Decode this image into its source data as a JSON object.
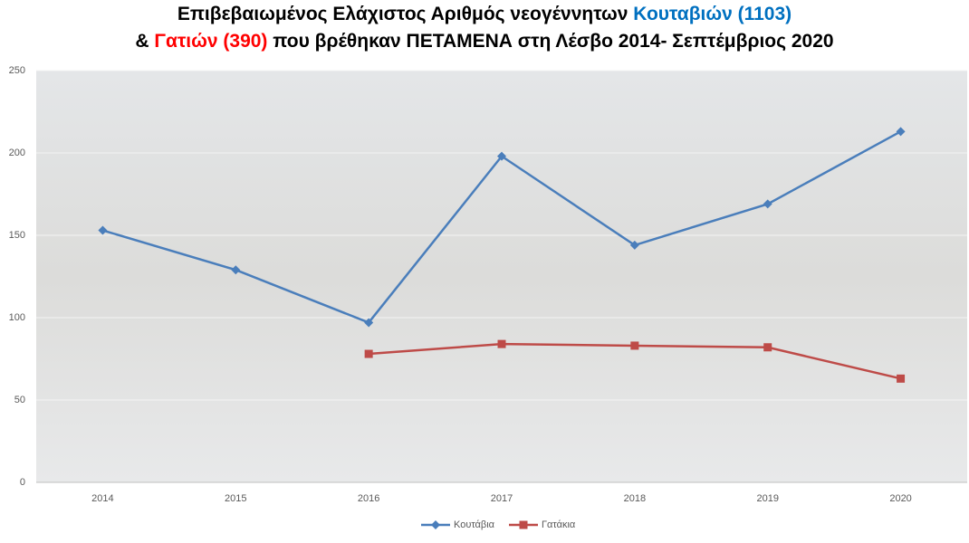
{
  "chart_data": {
    "type": "line",
    "title": [
      [
        {
          "text": "Επιβεβαιωμένος Ελάχιστος Αριθμός νεογέννητων ",
          "color": "#000000"
        },
        {
          "text": "Κουταβιών (1103)",
          "color": "#0070c0"
        }
      ],
      [
        {
          "text": "& ",
          "color": "#000000"
        },
        {
          "text": "Γατιών (390)",
          "color": "#ff0000"
        },
        {
          "text": " που βρέθηκαν ΠΕΤΑΜΕΝΑ στη Λέσβο 2014- Σεπτέμβριος 2020",
          "color": "#000000"
        }
      ]
    ],
    "categories": [
      "2014",
      "2015",
      "2016",
      "2017",
      "2018",
      "2019",
      "2020"
    ],
    "series": [
      {
        "name": "Κουτάβια",
        "color": "#4a7ebb",
        "marker": "diamond",
        "values": [
          153,
          129,
          97,
          198,
          144,
          169,
          213
        ]
      },
      {
        "name": "Γατάκια",
        "color": "#be4b48",
        "marker": "square",
        "values": [
          null,
          null,
          78,
          84,
          83,
          82,
          63
        ]
      }
    ],
    "ylim": [
      0,
      250
    ],
    "yticks": [
      0,
      50,
      100,
      150,
      200,
      250
    ],
    "grid": true,
    "legend": "bottom"
  }
}
